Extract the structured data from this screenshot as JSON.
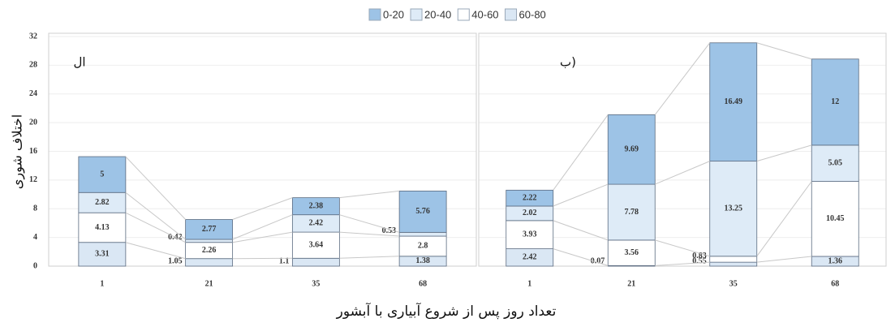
{
  "chart_data": [
    {
      "type": "bar",
      "stacked": true,
      "panel_label": "ال",
      "ylabel": "اختلاف شوری",
      "xlabel": "تعداد روز پس از شروع آبیاری با آبشور",
      "categories": [
        "1",
        "21",
        "35",
        "68"
      ],
      "ylim": [
        0,
        32
      ],
      "yticks": [
        0,
        4,
        8,
        12,
        16,
        20,
        24,
        28,
        32
      ],
      "grid": true,
      "series": [
        {
          "name": "60-80",
          "color": "#dae7f4",
          "values": [
            3.31,
            1.05,
            1.1,
            1.38
          ]
        },
        {
          "name": "40-60",
          "color": "#ffffff",
          "values": [
            4.13,
            2.26,
            3.64,
            2.8
          ]
        },
        {
          "name": "20-40",
          "color": "#deebf7",
          "values": [
            2.82,
            0.42,
            2.42,
            0.53
          ]
        },
        {
          "name": "0-20",
          "color": "#9dc3e6",
          "values": [
            5,
            2.77,
            2.38,
            5.76
          ]
        }
      ]
    },
    {
      "type": "bar",
      "stacked": true,
      "panel_label": "ب)",
      "categories": [
        "1",
        "21",
        "35",
        "68"
      ],
      "ylim": [
        0,
        32
      ],
      "grid": true,
      "series": [
        {
          "color": "#dae7f4",
          "values": [
            2.42,
            0.07,
            0.55,
            1.36
          ]
        },
        {
          "color": "#ffffff",
          "values": [
            3.93,
            3.56,
            0.83,
            10.45
          ]
        },
        {
          "color": "#deebf7",
          "values": [
            2.02,
            7.78,
            13.25,
            5.05
          ]
        },
        {
          "color": "#9dc3e6",
          "values": [
            2.22,
            9.69,
            16.49,
            12
          ]
        }
      ]
    }
  ]
}
